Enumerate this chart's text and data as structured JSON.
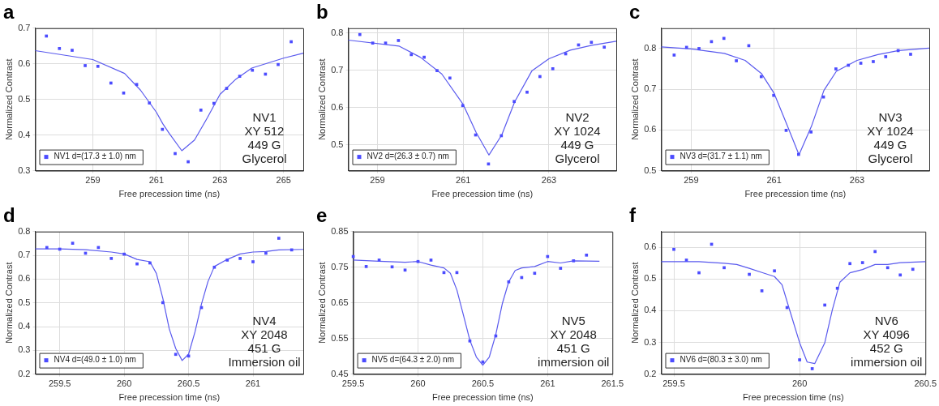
{
  "chart_data": [
    {
      "type": "scatter",
      "title": "a",
      "xlabel": "Free precession time (ns)",
      "ylabel": "Normalized Contrast",
      "xlim": [
        257.19,
        265.62
      ],
      "xticks": [
        259,
        261,
        263,
        265
      ],
      "ylim": [
        0.3,
        0.7
      ],
      "yticks": [
        0.3,
        0.4,
        0.5,
        0.6,
        0.7
      ],
      "grid": true,
      "legend": "bottom left",
      "annotations": [
        "NV1",
        "XY 512",
        "449 G",
        "Glycerol"
      ],
      "series": [
        {
          "name": "NV1 d=(17.3 ± 1.0) nm",
          "color": "#4b4bff",
          "marker": "square",
          "x": [
            257.54,
            257.95,
            258.35,
            258.76,
            259.16,
            259.57,
            259.97,
            260.38,
            260.78,
            261.19,
            261.59,
            262.0,
            262.4,
            262.81,
            263.21,
            263.62,
            264.02,
            264.43,
            264.83,
            265.24
          ],
          "values": [
            0.678,
            0.643,
            0.638,
            0.595,
            0.593,
            0.546,
            0.518,
            0.542,
            0.49,
            0.416,
            0.348,
            0.325,
            0.47,
            0.489,
            0.531,
            0.565,
            0.582,
            0.571,
            0.598,
            0.662
          ]
        },
        {
          "type": "line",
          "color": "#5a5aee",
          "marker": "none",
          "line_style": "solid",
          "x": [
            257.19,
            259,
            260,
            260.5,
            261,
            261.2,
            261.4,
            261.8,
            262.2,
            262.6,
            263,
            263.5,
            264,
            265,
            265.62
          ],
          "values": [
            0.637,
            0.612,
            0.573,
            0.526,
            0.464,
            0.432,
            0.405,
            0.356,
            0.386,
            0.448,
            0.514,
            0.557,
            0.588,
            0.616,
            0.63
          ]
        }
      ]
    },
    {
      "type": "scatter",
      "title": "b",
      "xlabel": "Free precession time (ns)",
      "ylabel": "Normalized Contrast",
      "xlim": [
        258.32,
        264.57
      ],
      "xticks": [
        259,
        261,
        263
      ],
      "ylim": [
        0.43,
        0.813
      ],
      "yticks": [
        0.5,
        0.6,
        0.7,
        0.8
      ],
      "grid": true,
      "legend": "bottom left",
      "annotations": [
        "NV2",
        "XY 1024",
        "449 G",
        "Glycerol"
      ],
      "series": [
        {
          "name": "NV2 d=(26.3 ± 0.7) nm",
          "color": "#4b4bff",
          "marker": "square",
          "x": [
            258.59,
            258.89,
            259.19,
            259.49,
            259.79,
            260.09,
            260.39,
            260.69,
            260.99,
            261.29,
            261.59,
            261.89,
            262.19,
            262.49,
            262.79,
            263.09,
            263.39,
            263.69,
            263.99,
            264.29
          ],
          "values": [
            0.796,
            0.773,
            0.773,
            0.78,
            0.742,
            0.735,
            0.699,
            0.679,
            0.605,
            0.526,
            0.448,
            0.524,
            0.616,
            0.641,
            0.683,
            0.704,
            0.744,
            0.768,
            0.775,
            0.762
          ]
        },
        {
          "type": "line",
          "color": "#5a5aee",
          "marker": "none",
          "line_style": "solid",
          "x": [
            258.32,
            259.5,
            260,
            260.5,
            261,
            261.3,
            261.6,
            261.9,
            262.2,
            262.6,
            263,
            263.5,
            264,
            264.57
          ],
          "values": [
            0.781,
            0.765,
            0.735,
            0.69,
            0.608,
            0.533,
            0.472,
            0.526,
            0.615,
            0.698,
            0.731,
            0.754,
            0.767,
            0.778
          ]
        }
      ]
    },
    {
      "type": "scatter",
      "title": "c",
      "xlabel": "Free precession time (ns)",
      "ylabel": "Normalized Contrast",
      "xlim": [
        258.28,
        264.74
      ],
      "xticks": [
        259,
        261,
        263
      ],
      "ylim": [
        0.5,
        0.85
      ],
      "yticks": [
        0.5,
        0.6,
        0.7,
        0.8
      ],
      "grid": true,
      "legend": "bottom left",
      "annotations": [
        "NV3",
        "XY 1024",
        "449 G",
        "Glycerol"
      ],
      "series": [
        {
          "name": "NV3 d=(31.7 ± 1.1) nm",
          "color": "#4b4bff",
          "marker": "square",
          "x": [
            258.59,
            258.89,
            259.19,
            259.49,
            259.79,
            260.09,
            260.39,
            260.69,
            260.99,
            261.29,
            261.59,
            261.89,
            262.19,
            262.49,
            262.79,
            263.09,
            263.39,
            263.69,
            263.99,
            264.29
          ],
          "values": [
            0.784,
            0.803,
            0.8,
            0.817,
            0.825,
            0.77,
            0.807,
            0.731,
            0.685,
            0.599,
            0.54,
            0.595,
            0.681,
            0.75,
            0.759,
            0.764,
            0.768,
            0.78,
            0.795,
            0.786
          ]
        },
        {
          "type": "line",
          "color": "#5a5aee",
          "marker": "none",
          "line_style": "solid",
          "x": [
            258.28,
            259,
            259.8,
            260.3,
            260.7,
            261,
            261.3,
            261.6,
            261.9,
            262.2,
            262.5,
            263,
            263.5,
            264,
            264.74
          ],
          "values": [
            0.804,
            0.799,
            0.788,
            0.771,
            0.738,
            0.69,
            0.615,
            0.539,
            0.609,
            0.697,
            0.744,
            0.771,
            0.785,
            0.795,
            0.801
          ]
        }
      ]
    },
    {
      "type": "scatter",
      "title": "d",
      "xlabel": "Free precession time (ns)",
      "ylabel": "Normalized Contrast",
      "xlim": [
        259.31,
        261.39
      ],
      "xticks": [
        259.5,
        260,
        260.5,
        261
      ],
      "ylim": [
        0.2,
        0.8
      ],
      "yticks": [
        0.2,
        0.3,
        0.4,
        0.5,
        0.6,
        0.7,
        0.8
      ],
      "grid": true,
      "legend": "bottom left",
      "annotations": [
        "NV4",
        "XY 2048",
        "451 G",
        "Immersion oil"
      ],
      "series": [
        {
          "name": "NV4 d=(49.0 ± 1.0) nm",
          "color": "#4b4bff",
          "marker": "square",
          "x": [
            259.4,
            259.5,
            259.6,
            259.7,
            259.8,
            259.9,
            260.0,
            260.1,
            260.2,
            260.3,
            260.4,
            260.5,
            260.6,
            260.7,
            260.8,
            260.9,
            261.0,
            261.1,
            261.2,
            261.3
          ],
          "values": [
            0.733,
            0.726,
            0.751,
            0.709,
            0.733,
            0.687,
            0.705,
            0.664,
            0.668,
            0.501,
            0.283,
            0.276,
            0.48,
            0.65,
            0.68,
            0.687,
            0.673,
            0.709,
            0.772,
            0.723
          ]
        },
        {
          "type": "line",
          "color": "#5a5aee",
          "marker": "none",
          "line_style": "solid",
          "x": [
            259.31,
            259.5,
            259.7,
            259.9,
            260.0,
            260.1,
            260.2,
            260.25,
            260.3,
            260.35,
            260.4,
            260.45,
            260.5,
            260.55,
            260.6,
            260.65,
            260.7,
            260.8,
            260.9,
            261.0,
            261.1,
            261.2,
            261.39
          ],
          "values": [
            0.727,
            0.727,
            0.724,
            0.714,
            0.706,
            0.683,
            0.673,
            0.624,
            0.519,
            0.39,
            0.308,
            0.257,
            0.284,
            0.378,
            0.495,
            0.589,
            0.653,
            0.683,
            0.706,
            0.714,
            0.716,
            0.723,
            0.725
          ]
        }
      ]
    },
    {
      "type": "scatter",
      "title": "e",
      "xlabel": "Free precession time (ns)",
      "ylabel": "Normalized Contrast",
      "xlim": [
        259.5,
        261.5
      ],
      "xticks": [
        259.5,
        260,
        260.5,
        261,
        261.5
      ],
      "ylim": [
        0.45,
        0.85
      ],
      "yticks": [
        0.45,
        0.55,
        0.65,
        0.75,
        0.85
      ],
      "grid": true,
      "legend": "bottom left",
      "annotations": [
        "NV5",
        "XY 2048",
        "451 G",
        "immersion oil"
      ],
      "series": [
        {
          "name": "NV5 d=(64.3 ± 2.0) nm",
          "color": "#4b4bff",
          "marker": "square",
          "x": [
            259.5,
            259.6,
            259.7,
            259.8,
            259.9,
            260.0,
            260.1,
            260.2,
            260.3,
            260.4,
            260.5,
            260.6,
            260.7,
            260.8,
            260.9,
            261.0,
            261.1,
            261.2,
            261.3
          ],
          "values": [
            0.78,
            0.752,
            0.77,
            0.751,
            0.742,
            0.766,
            0.77,
            0.735,
            0.735,
            0.543,
            0.484,
            0.557,
            0.709,
            0.721,
            0.733,
            0.78,
            0.747,
            0.768,
            0.784
          ]
        },
        {
          "type": "line",
          "color": "#5a5aee",
          "marker": "none",
          "line_style": "solid",
          "x": [
            259.5,
            259.7,
            259.9,
            260.0,
            260.1,
            260.2,
            260.25,
            260.3,
            260.35,
            260.4,
            260.45,
            260.5,
            260.55,
            260.6,
            260.65,
            260.7,
            260.75,
            260.8,
            260.9,
            261.0,
            261.1,
            261.2,
            261.4
          ],
          "values": [
            0.77,
            0.767,
            0.764,
            0.766,
            0.756,
            0.748,
            0.733,
            0.686,
            0.616,
            0.545,
            0.498,
            0.475,
            0.498,
            0.561,
            0.647,
            0.709,
            0.741,
            0.748,
            0.752,
            0.766,
            0.762,
            0.768,
            0.767
          ]
        }
      ]
    },
    {
      "type": "scatter",
      "title": "f",
      "xlabel": "Free precession time (ns)",
      "ylabel": "Normalized Contrast",
      "xlim": [
        259.45,
        260.5
      ],
      "xticks": [
        259.5,
        260,
        260.5
      ],
      "ylim": [
        0.2,
        0.65
      ],
      "yticks": [
        0.2,
        0.3,
        0.4,
        0.5,
        0.6
      ],
      "grid": true,
      "legend": "bottom left",
      "annotations": [
        "NV6",
        "XY 4096",
        "452 G",
        "immersion oil"
      ],
      "series": [
        {
          "name": "NV6 d=(80.3 ± 3.0) nm",
          "color": "#4b4bff",
          "marker": "square",
          "x": [
            259.5,
            259.55,
            259.6,
            259.65,
            259.7,
            259.8,
            259.85,
            259.9,
            259.95,
            260.0,
            260.05,
            260.1,
            260.15,
            260.2,
            260.25,
            260.3,
            260.35,
            260.4,
            260.45
          ],
          "values": [
            0.594,
            0.56,
            0.52,
            0.61,
            0.536,
            0.515,
            0.463,
            0.526,
            0.41,
            0.245,
            0.217,
            0.418,
            0.471,
            0.549,
            0.552,
            0.587,
            0.536,
            0.513,
            0.531
          ]
        },
        {
          "type": "line",
          "color": "#5a5aee",
          "marker": "none",
          "line_style": "solid",
          "x": [
            259.45,
            259.6,
            259.7,
            259.75,
            259.8,
            259.85,
            259.9,
            259.93,
            259.96,
            260.0,
            260.03,
            260.06,
            260.1,
            260.13,
            260.16,
            260.2,
            260.25,
            260.3,
            260.35,
            260.4,
            260.5
          ],
          "values": [
            0.555,
            0.555,
            0.55,
            0.546,
            0.534,
            0.521,
            0.508,
            0.482,
            0.403,
            0.299,
            0.238,
            0.233,
            0.299,
            0.403,
            0.49,
            0.52,
            0.53,
            0.546,
            0.546,
            0.552,
            0.555
          ]
        }
      ]
    }
  ]
}
